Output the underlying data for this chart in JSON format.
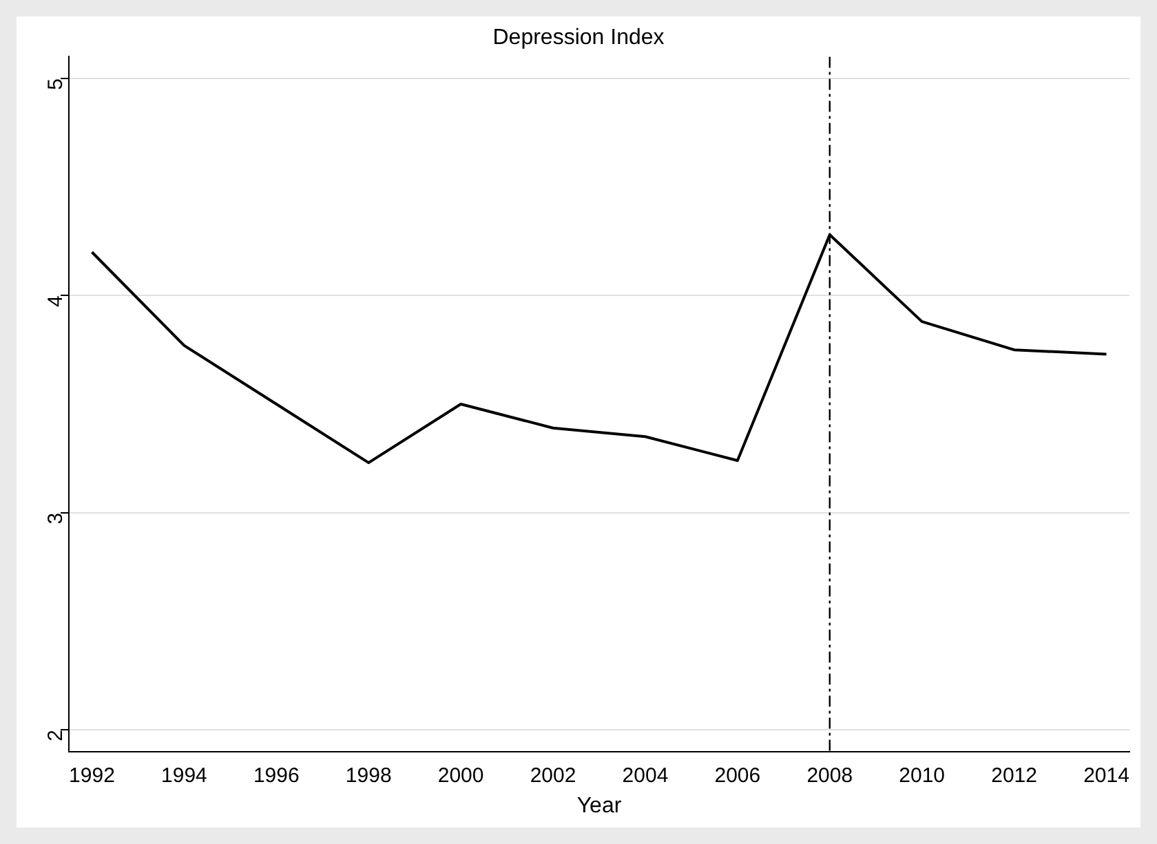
{
  "chart_data": {
    "type": "line",
    "title": "Depression Index",
    "xlabel": "Year",
    "x": [
      1992,
      1994,
      1996,
      1998,
      2000,
      2002,
      2004,
      2006,
      2008,
      2010,
      2012,
      2014
    ],
    "series": [
      {
        "color": "#000000",
        "values": [
          4.2,
          3.77,
          3.5,
          3.23,
          3.5,
          3.39,
          3.35,
          3.24,
          4.28,
          3.88,
          3.75,
          3.73
        ]
      }
    ],
    "xlim": [
      1991.5,
      2014.5
    ],
    "xticks": [
      1992,
      1994,
      1996,
      1998,
      2000,
      2002,
      2004,
      2006,
      2008,
      2010,
      2012,
      2014
    ],
    "ylim": [
      1.9,
      5.1
    ],
    "yticks": [
      2,
      3,
      4,
      5
    ],
    "grid": "y",
    "legend": false,
    "marker": "none",
    "line_style": "solid",
    "ref_lines": [
      {
        "axis": "x",
        "value": 2008,
        "color": "#000000",
        "line_style": "dashdot"
      }
    ]
  }
}
